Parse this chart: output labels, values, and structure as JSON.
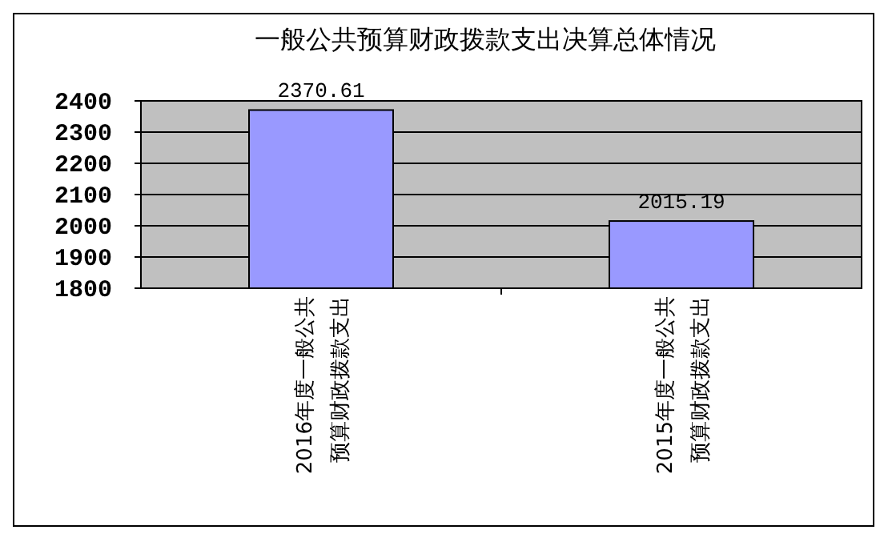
{
  "chart_data": {
    "type": "bar",
    "title": "一般公共预算财政拨款支出决算总体情况",
    "categories": [
      "2016年度一般公共预算财政拨款支出",
      "2015年度一般公共预算财政拨款支出"
    ],
    "values": [
      2370.61,
      2015.19
    ],
    "color": "#9999ff",
    "ylim": [
      1800,
      2400
    ],
    "yticks": [
      1800,
      1900,
      2000,
      2100,
      2200,
      2300,
      2400
    ],
    "grid": "y",
    "data_labels": true
  }
}
